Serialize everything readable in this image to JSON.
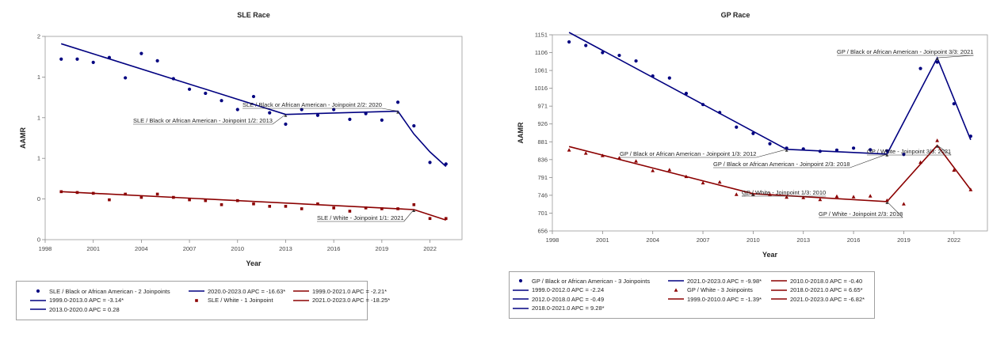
{
  "chart_data": [
    {
      "type": "line",
      "title": "SLE Race",
      "xlabel": "Year",
      "ylabel": "AAMR",
      "xlim": [
        1998,
        2024
      ],
      "ylim": [
        0,
        2.5
      ],
      "x_ticks": [
        1998,
        2001,
        2004,
        2007,
        2010,
        2013,
        2016,
        2019,
        2022
      ],
      "y_ticks": [
        0,
        0.5,
        1,
        1.5,
        2,
        2.5
      ],
      "y_tick_labels": [
        "0",
        "0",
        "1",
        "1",
        "1",
        "2"
      ],
      "series": [
        {
          "name": "SLE / Black or African American - 2 Joinpoints",
          "kind": "observed",
          "marker": "dot",
          "color": "#000080",
          "x": [
            1999,
            2000,
            2001,
            2002,
            2003,
            2004,
            2005,
            2006,
            2007,
            2008,
            2009,
            2010,
            2011,
            2012,
            2013,
            2014,
            2015,
            2016,
            2017,
            2018,
            2019,
            2020,
            2021,
            2022,
            2023
          ],
          "y": [
            2.22,
            2.22,
            2.18,
            2.24,
            1.99,
            2.29,
            2.2,
            1.98,
            1.85,
            1.8,
            1.71,
            1.6,
            1.76,
            1.56,
            1.42,
            1.6,
            1.53,
            1.6,
            1.48,
            1.55,
            1.47,
            1.69,
            1.4,
            0.95,
            0.93
          ]
        },
        {
          "name": "SLE / Black or African American - fitted",
          "kind": "fitted",
          "color": "#000080",
          "x": [
            1999,
            2013,
            2020,
            2021,
            2022,
            2023
          ],
          "y": [
            2.41,
            1.54,
            1.58,
            1.3,
            1.08,
            0.9
          ]
        },
        {
          "name": "SLE / White - 1 Joinpoint",
          "kind": "observed",
          "marker": "x",
          "color": "#8b0000",
          "x": [
            1999,
            2000,
            2001,
            2002,
            2003,
            2004,
            2005,
            2006,
            2007,
            2008,
            2009,
            2010,
            2011,
            2012,
            2013,
            2014,
            2015,
            2016,
            2017,
            2018,
            2019,
            2020,
            2021,
            2022,
            2023
          ],
          "y": [
            0.59,
            0.58,
            0.57,
            0.49,
            0.56,
            0.52,
            0.56,
            0.52,
            0.49,
            0.48,
            0.43,
            0.48,
            0.44,
            0.41,
            0.41,
            0.38,
            0.44,
            0.39,
            0.35,
            0.39,
            0.38,
            0.38,
            0.43,
            0.26,
            0.26
          ]
        },
        {
          "name": "SLE / White - fitted",
          "kind": "fitted",
          "color": "#8b0000",
          "x": [
            1999,
            2021,
            2023
          ],
          "y": [
            0.59,
            0.37,
            0.24
          ]
        }
      ],
      "annotations": [
        {
          "text": "SLE / Black or African American - Joinpoint 2/2:  2020",
          "x": 2020,
          "y": 1.58
        },
        {
          "text": "SLE / Black or African American - Joinpoint 1/2:  2013",
          "x": 2013,
          "y": 1.54
        },
        {
          "text": "SLE / White - Joinpoint 1/1:  2021",
          "x": 2021,
          "y": 0.37
        }
      ],
      "legend": [
        {
          "label": "SLE / Black or African American - 2 Joinpoints",
          "symbol": "dot",
          "color": "#000080"
        },
        {
          "label": "2020.0-2023.0 APC = -16.63*",
          "symbol": "line",
          "color": "#000080"
        },
        {
          "label": "1999.0-2021.0 APC = -2.21*",
          "symbol": "line",
          "color": "#8b0000"
        },
        {
          "label": "1999.0-2013.0 APC = -3.14*",
          "symbol": "line",
          "color": "#000080"
        },
        {
          "label": "SLE / White - 1 Joinpoint",
          "symbol": "x",
          "color": "#8b0000"
        },
        {
          "label": "2021.0-2023.0 APC = -18.25*",
          "symbol": "line",
          "color": "#8b0000"
        },
        {
          "label": "2013.0-2020.0 APC =  0.28",
          "symbol": "line",
          "color": "#000080"
        }
      ],
      "legend_position": "bottom",
      "grid": false
    },
    {
      "type": "line",
      "title": "GP Race",
      "xlabel": "Year",
      "ylabel": "AAMR",
      "xlim": [
        1998,
        2024
      ],
      "ylim": [
        656,
        1151
      ],
      "x_ticks": [
        1998,
        2001,
        2004,
        2007,
        2010,
        2013,
        2016,
        2019,
        2022
      ],
      "y_ticks": [
        656,
        701,
        746,
        791,
        836,
        881,
        926,
        971,
        1016,
        1061,
        1106,
        1151
      ],
      "series": [
        {
          "name": "GP / Black or African American - 3 Joinpoints",
          "kind": "observed",
          "marker": "dot",
          "color": "#000080",
          "x": [
            1999,
            2000,
            2001,
            2002,
            2003,
            2004,
            2005,
            2006,
            2007,
            2008,
            2009,
            2010,
            2011,
            2012,
            2013,
            2014,
            2015,
            2016,
            2017,
            2018,
            2019,
            2020,
            2021,
            2022,
            2023
          ],
          "y": [
            1133,
            1124,
            1106,
            1099,
            1085,
            1047,
            1042,
            1003,
            975,
            955,
            918,
            902,
            876,
            865,
            863,
            857,
            860,
            865,
            861,
            858,
            849,
            1066,
            1082,
            977,
            895
          ]
        },
        {
          "name": "GP / Black or African American - fitted",
          "kind": "fitted",
          "color": "#000080",
          "x": [
            1999,
            2012,
            2018,
            2021,
            2023
          ],
          "y": [
            1157,
            862,
            850,
            1093,
            886
          ]
        },
        {
          "name": "GP / White - 3 Joinpoints",
          "kind": "observed",
          "marker": "triangle",
          "color": "#8b0000",
          "x": [
            1999,
            2000,
            2001,
            2002,
            2003,
            2004,
            2005,
            2006,
            2007,
            2008,
            2009,
            2010,
            2011,
            2012,
            2013,
            2014,
            2015,
            2016,
            2017,
            2018,
            2019,
            2020,
            2021,
            2022,
            2023
          ],
          "y": [
            860,
            852,
            846,
            840,
            832,
            808,
            810,
            793,
            777,
            779,
            748,
            748,
            748,
            741,
            740,
            735,
            743,
            742,
            744,
            733,
            724,
            829,
            884,
            809,
            760
          ]
        },
        {
          "name": "GP / White - fitted",
          "kind": "fitted",
          "color": "#8b0000",
          "x": [
            1999,
            2010,
            2018,
            2021,
            2023
          ],
          "y": [
            869,
            750,
            730,
            872,
            760
          ]
        }
      ],
      "annotations": [
        {
          "text": "GP / Black or African American - Joinpoint 3/3:  2021",
          "x": 2021,
          "y": 1093
        },
        {
          "text": "GP / Black or African American - Joinpoint 1/3:  2012",
          "x": 2012,
          "y": 862
        },
        {
          "text": "GP / White - Joinpoint 3/3:  2021",
          "x": 2021,
          "y": 872
        },
        {
          "text": "GP / Black or African American - Joinpoint 2/3:  2018",
          "x": 2018,
          "y": 850
        },
        {
          "text": "GP / White - Joinpoint 1/3:  2010",
          "x": 2010,
          "y": 750
        },
        {
          "text": "GP / White - Joinpoint 2/3:  2018",
          "x": 2018,
          "y": 730
        }
      ],
      "legend": [
        {
          "label": "GP / Black or African American - 3 Joinpoints",
          "symbol": "dot",
          "color": "#000080"
        },
        {
          "label": "2021.0-2023.0 APC = -9.98*",
          "symbol": "line",
          "color": "#000080"
        },
        {
          "label": "2010.0-2018.0 APC = -0.40",
          "symbol": "line",
          "color": "#8b0000"
        },
        {
          "label": "1999.0-2012.0 APC = -2.24",
          "symbol": "line",
          "color": "#000080"
        },
        {
          "label": "GP / White - 3 Joinpoints",
          "symbol": "triangle",
          "color": "#8b0000"
        },
        {
          "label": "2018.0-2021.0 APC =  6.65*",
          "symbol": "line",
          "color": "#8b0000"
        },
        {
          "label": "2012.0-2018.0 APC = -0.49",
          "symbol": "line",
          "color": "#000080"
        },
        {
          "label": "1999.0-2010.0 APC = -1.39*",
          "symbol": "line",
          "color": "#8b0000"
        },
        {
          "label": "2021.0-2023.0 APC = -6.82*",
          "symbol": "line",
          "color": "#8b0000"
        },
        {
          "label": "2018.0-2021.0 APC =  9.28*",
          "symbol": "line",
          "color": "#000080"
        }
      ],
      "legend_position": "bottom",
      "grid": false
    }
  ]
}
